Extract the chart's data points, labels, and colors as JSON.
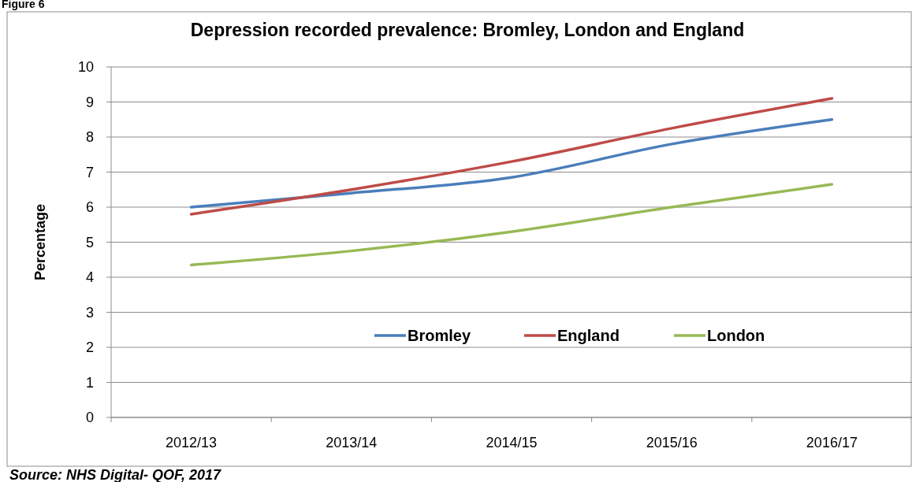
{
  "chart_data": {
    "type": "line",
    "title": "Depression recorded prevalence: Bromley, London and England",
    "ylabel": "Percentage",
    "categories": [
      "2012/13",
      "2013/14",
      "2014/15",
      "2015/16",
      "2016/17"
    ],
    "series": [
      {
        "name": "Bromley",
        "color": "#4a7ebb",
        "values": [
          6.0,
          6.4,
          6.85,
          7.8,
          8.5
        ]
      },
      {
        "name": "England",
        "color": "#be4b48",
        "values": [
          5.8,
          6.5,
          7.3,
          8.25,
          9.1
        ]
      },
      {
        "name": "London",
        "color": "#98b954",
        "values": [
          4.35,
          4.75,
          5.3,
          6.0,
          6.65
        ]
      }
    ],
    "ylim": [
      0,
      10
    ],
    "yticks": [
      0,
      1,
      2,
      3,
      4,
      5,
      6,
      7,
      8,
      9,
      10
    ],
    "grid": "y",
    "legend": "bottom",
    "marker": "none",
    "line_style": "solid",
    "annotations": [
      "Figure 6",
      "Source: NHS Digital- QOF, 2017"
    ]
  }
}
